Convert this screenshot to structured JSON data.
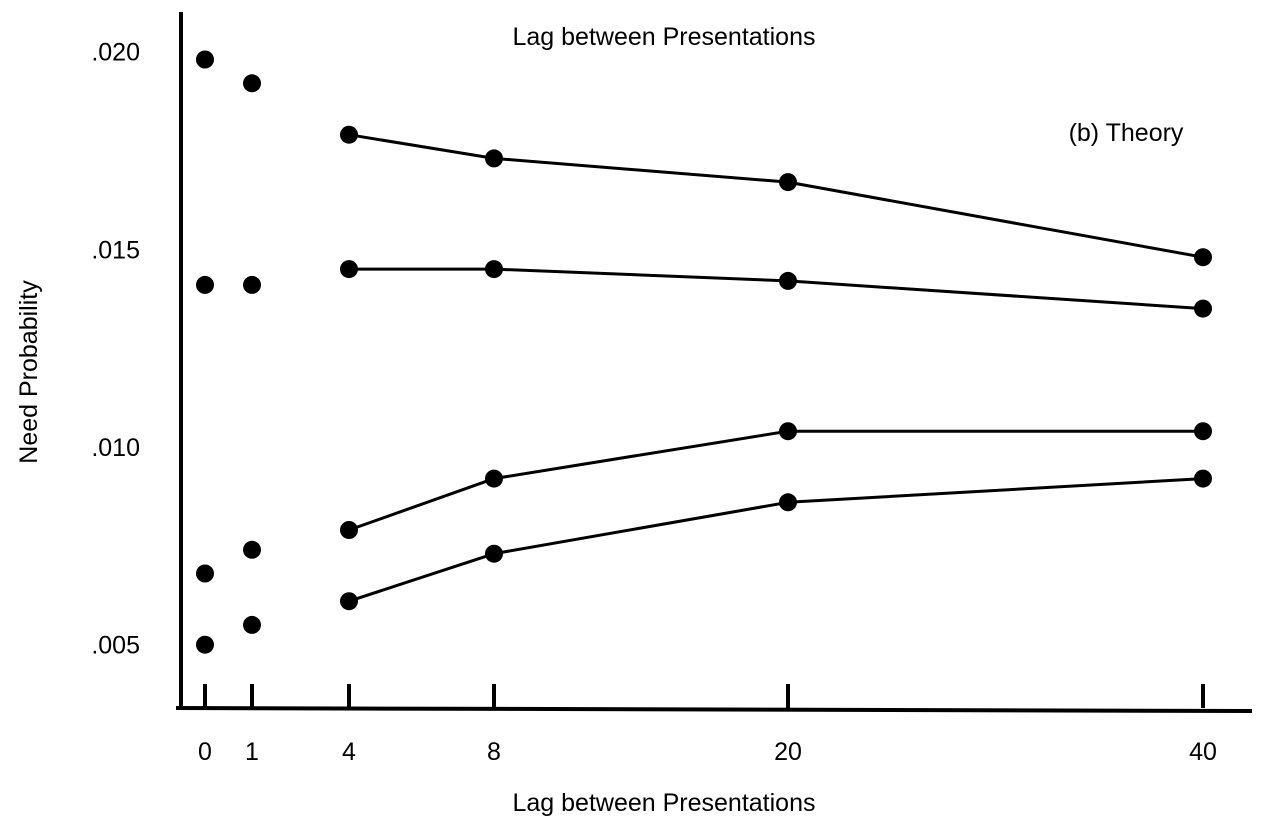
{
  "chart_data": {
    "type": "line",
    "title": "Lag between Presentations",
    "annotation": "(b) Theory",
    "xlabel": "Lag between Presentations",
    "ylabel": "Need Probability",
    "x_tick_labels": [
      "0",
      "1",
      "4",
      "8",
      "20",
      "40"
    ],
    "y_tick_labels": [
      ".005",
      ".010",
      ".015",
      ".020"
    ],
    "y_ticks": [
      0.005,
      0.01,
      0.015,
      0.02
    ],
    "ylim": [
      0.0036,
      0.0208
    ],
    "grid": false,
    "legend": "none",
    "line_color": "#000000",
    "series": [
      {
        "points": [
          {
            "lag": "0",
            "value": 0.0198
          },
          {
            "lag": "1",
            "value": 0.0192
          },
          {
            "lag": "4",
            "value": 0.0179
          },
          {
            "lag": "8",
            "value": 0.0173
          },
          {
            "lag": "20",
            "value": 0.0167
          },
          {
            "lag": "40",
            "value": 0.0148
          }
        ],
        "connected_from": "4"
      },
      {
        "points": [
          {
            "lag": "0",
            "value": 0.0141
          },
          {
            "lag": "1",
            "value": 0.0141
          },
          {
            "lag": "4",
            "value": 0.0145
          },
          {
            "lag": "8",
            "value": 0.0145
          },
          {
            "lag": "20",
            "value": 0.0142
          },
          {
            "lag": "40",
            "value": 0.0135
          }
        ],
        "connected_from": "4"
      },
      {
        "points": [
          {
            "lag": "0",
            "value": 0.0068
          },
          {
            "lag": "1",
            "value": 0.0074
          },
          {
            "lag": "4",
            "value": 0.0079
          },
          {
            "lag": "8",
            "value": 0.0092
          },
          {
            "lag": "20",
            "value": 0.0104
          },
          {
            "lag": "40",
            "value": 0.0104
          }
        ],
        "connected_from": "4"
      },
      {
        "points": [
          {
            "lag": "0",
            "value": 0.005
          },
          {
            "lag": "1",
            "value": 0.0055
          },
          {
            "lag": "4",
            "value": 0.0061
          },
          {
            "lag": "8",
            "value": 0.0073
          },
          {
            "lag": "20",
            "value": 0.0086
          },
          {
            "lag": "40",
            "value": 0.0092
          }
        ],
        "connected_from": "4"
      }
    ]
  }
}
